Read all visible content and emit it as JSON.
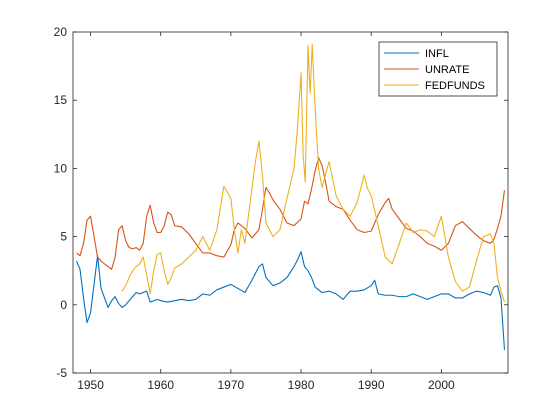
{
  "chart_data": {
    "type": "line",
    "title": "",
    "xlabel": "",
    "ylabel": "",
    "xlim": [
      1947.5,
      2009.5
    ],
    "ylim": [
      -5,
      20
    ],
    "xticks": [
      1950,
      1960,
      1970,
      1980,
      1990,
      2000
    ],
    "yticks": [
      -5,
      0,
      5,
      10,
      15,
      20
    ],
    "grid": false,
    "legend_position": "top-right",
    "series": [
      {
        "name": "INFL",
        "color": "#0072BD",
        "points": [
          [
            1948,
            3.2
          ],
          [
            1948.5,
            2.6
          ],
          [
            1949,
            0.5
          ],
          [
            1949.5,
            -1.3
          ],
          [
            1950,
            -0.6
          ],
          [
            1950.5,
            1.5
          ],
          [
            1951,
            3.6
          ],
          [
            1951.5,
            1.2
          ],
          [
            1952,
            0.5
          ],
          [
            1952.5,
            -0.2
          ],
          [
            1953,
            0.3
          ],
          [
            1953.5,
            0.6
          ],
          [
            1954,
            0.1
          ],
          [
            1954.5,
            -0.2
          ],
          [
            1955,
            0.0
          ],
          [
            1955.5,
            0.3
          ],
          [
            1956,
            0.6
          ],
          [
            1956.5,
            0.9
          ],
          [
            1957,
            0.8
          ],
          [
            1957.5,
            0.9
          ],
          [
            1958,
            1.0
          ],
          [
            1958.5,
            0.2
          ],
          [
            1959,
            0.3
          ],
          [
            1959.5,
            0.4
          ],
          [
            1960,
            0.3
          ],
          [
            1961,
            0.2
          ],
          [
            1962,
            0.3
          ],
          [
            1963,
            0.4
          ],
          [
            1964,
            0.3
          ],
          [
            1965,
            0.4
          ],
          [
            1966,
            0.8
          ],
          [
            1967,
            0.7
          ],
          [
            1968,
            1.1
          ],
          [
            1969,
            1.3
          ],
          [
            1970,
            1.5
          ],
          [
            1971,
            1.2
          ],
          [
            1972,
            0.9
          ],
          [
            1973,
            1.8
          ],
          [
            1974,
            2.8
          ],
          [
            1974.5,
            3.0
          ],
          [
            1975,
            2.0
          ],
          [
            1976,
            1.4
          ],
          [
            1977,
            1.6
          ],
          [
            1978,
            2.0
          ],
          [
            1979,
            2.8
          ],
          [
            1979.5,
            3.3
          ],
          [
            1980,
            3.9
          ],
          [
            1980.5,
            2.8
          ],
          [
            1981,
            2.5
          ],
          [
            1981.5,
            2.0
          ],
          [
            1982,
            1.3
          ],
          [
            1983,
            0.9
          ],
          [
            1984,
            1.0
          ],
          [
            1985,
            0.8
          ],
          [
            1986,
            0.4
          ],
          [
            1987,
            1.0
          ],
          [
            1988,
            1.0
          ],
          [
            1989,
            1.1
          ],
          [
            1990,
            1.4
          ],
          [
            1990.5,
            1.8
          ],
          [
            1991,
            0.8
          ],
          [
            1992,
            0.7
          ],
          [
            1993,
            0.7
          ],
          [
            1994,
            0.6
          ],
          [
            1995,
            0.6
          ],
          [
            1996,
            0.8
          ],
          [
            1997,
            0.6
          ],
          [
            1998,
            0.4
          ],
          [
            1999,
            0.6
          ],
          [
            2000,
            0.8
          ],
          [
            2001,
            0.8
          ],
          [
            2002,
            0.5
          ],
          [
            2003,
            0.5
          ],
          [
            2004,
            0.8
          ],
          [
            2005,
            1.0
          ],
          [
            2006,
            0.9
          ],
          [
            2007,
            0.7
          ],
          [
            2007.5,
            1.3
          ],
          [
            2008,
            1.4
          ],
          [
            2008.5,
            0.5
          ],
          [
            2009,
            -3.3
          ]
        ]
      },
      {
        "name": "UNRATE",
        "color": "#D95319",
        "points": [
          [
            1948,
            3.8
          ],
          [
            1948.5,
            3.6
          ],
          [
            1949,
            4.5
          ],
          [
            1949.5,
            6.2
          ],
          [
            1950,
            6.5
          ],
          [
            1950.5,
            5.0
          ],
          [
            1951,
            3.5
          ],
          [
            1951.5,
            3.2
          ],
          [
            1952,
            3.0
          ],
          [
            1952.5,
            2.8
          ],
          [
            1953,
            2.6
          ],
          [
            1953.5,
            3.5
          ],
          [
            1954,
            5.5
          ],
          [
            1954.5,
            5.8
          ],
          [
            1955,
            4.7
          ],
          [
            1955.5,
            4.2
          ],
          [
            1956,
            4.1
          ],
          [
            1956.5,
            4.2
          ],
          [
            1957,
            4.0
          ],
          [
            1957.5,
            4.5
          ],
          [
            1958,
            6.5
          ],
          [
            1958.5,
            7.3
          ],
          [
            1959,
            6.0
          ],
          [
            1959.5,
            5.3
          ],
          [
            1960,
            5.3
          ],
          [
            1960.5,
            5.8
          ],
          [
            1961,
            6.8
          ],
          [
            1961.5,
            6.6
          ],
          [
            1962,
            5.8
          ],
          [
            1963,
            5.7
          ],
          [
            1964,
            5.2
          ],
          [
            1965,
            4.5
          ],
          [
            1966,
            3.8
          ],
          [
            1967,
            3.8
          ],
          [
            1968,
            3.6
          ],
          [
            1969,
            3.5
          ],
          [
            1970,
            4.4
          ],
          [
            1970.5,
            5.5
          ],
          [
            1971,
            6.0
          ],
          [
            1972,
            5.6
          ],
          [
            1973,
            4.9
          ],
          [
            1974,
            5.5
          ],
          [
            1974.5,
            7.0
          ],
          [
            1975,
            8.6
          ],
          [
            1975.5,
            8.2
          ],
          [
            1976,
            7.7
          ],
          [
            1977,
            7.0
          ],
          [
            1978,
            6.0
          ],
          [
            1979,
            5.8
          ],
          [
            1980,
            6.3
          ],
          [
            1980.5,
            7.6
          ],
          [
            1981,
            7.4
          ],
          [
            1981.5,
            8.5
          ],
          [
            1982,
            9.8
          ],
          [
            1982.5,
            10.8
          ],
          [
            1983,
            10.2
          ],
          [
            1983.5,
            9.0
          ],
          [
            1984,
            7.6
          ],
          [
            1985,
            7.2
          ],
          [
            1986,
            7.0
          ],
          [
            1987,
            6.2
          ],
          [
            1988,
            5.5
          ],
          [
            1989,
            5.3
          ],
          [
            1990,
            5.4
          ],
          [
            1991,
            6.6
          ],
          [
            1992,
            7.5
          ],
          [
            1992.5,
            7.8
          ],
          [
            1993,
            7.0
          ],
          [
            1994,
            6.3
          ],
          [
            1995,
            5.6
          ],
          [
            1996,
            5.4
          ],
          [
            1997,
            5.0
          ],
          [
            1998,
            4.5
          ],
          [
            1999,
            4.3
          ],
          [
            2000,
            4.0
          ],
          [
            2001,
            4.5
          ],
          [
            2002,
            5.8
          ],
          [
            2003,
            6.1
          ],
          [
            2004,
            5.6
          ],
          [
            2005,
            5.1
          ],
          [
            2006,
            4.7
          ],
          [
            2007,
            4.5
          ],
          [
            2007.5,
            4.8
          ],
          [
            2008,
            5.6
          ],
          [
            2008.5,
            6.5
          ],
          [
            2009,
            8.4
          ]
        ]
      },
      {
        "name": "FEDFUNDS",
        "color": "#EDB120",
        "points": [
          [
            1954.5,
            1.0
          ],
          [
            1955,
            1.4
          ],
          [
            1955.5,
            2.0
          ],
          [
            1956,
            2.5
          ],
          [
            1956.5,
            2.8
          ],
          [
            1957,
            3.0
          ],
          [
            1957.5,
            3.5
          ],
          [
            1958,
            2.2
          ],
          [
            1958.5,
            0.8
          ],
          [
            1959,
            2.5
          ],
          [
            1959.5,
            3.7
          ],
          [
            1960,
            3.8
          ],
          [
            1960.5,
            2.5
          ],
          [
            1961,
            1.5
          ],
          [
            1961.5,
            2.0
          ],
          [
            1962,
            2.7
          ],
          [
            1963,
            3.0
          ],
          [
            1964,
            3.5
          ],
          [
            1965,
            4.0
          ],
          [
            1966,
            5.0
          ],
          [
            1967,
            4.0
          ],
          [
            1968,
            5.5
          ],
          [
            1969,
            8.7
          ],
          [
            1970,
            7.8
          ],
          [
            1970.5,
            5.5
          ],
          [
            1971,
            3.8
          ],
          [
            1971.5,
            5.5
          ],
          [
            1972,
            4.5
          ],
          [
            1973,
            8.5
          ],
          [
            1973.5,
            10.5
          ],
          [
            1974,
            12.0
          ],
          [
            1974.5,
            9.5
          ],
          [
            1975,
            6.0
          ],
          [
            1976,
            5.0
          ],
          [
            1977,
            5.5
          ],
          [
            1978,
            7.8
          ],
          [
            1979,
            10.0
          ],
          [
            1979.5,
            13.0
          ],
          [
            1980,
            17.0
          ],
          [
            1980.3,
            11.0
          ],
          [
            1980.6,
            9.0
          ],
          [
            1981,
            19.0
          ],
          [
            1981.3,
            15.5
          ],
          [
            1981.6,
            19.1
          ],
          [
            1982,
            14.5
          ],
          [
            1982.5,
            10.0
          ],
          [
            1983,
            8.6
          ],
          [
            1984,
            10.5
          ],
          [
            1985,
            8.0
          ],
          [
            1986,
            7.0
          ],
          [
            1987,
            6.5
          ],
          [
            1988,
            7.5
          ],
          [
            1989,
            9.5
          ],
          [
            1989.5,
            8.5
          ],
          [
            1990,
            8.0
          ],
          [
            1991,
            5.8
          ],
          [
            1992,
            3.5
          ],
          [
            1993,
            3.0
          ],
          [
            1994,
            4.5
          ],
          [
            1995,
            6.0
          ],
          [
            1996,
            5.3
          ],
          [
            1997,
            5.5
          ],
          [
            1998,
            5.4
          ],
          [
            1999,
            5.0
          ],
          [
            2000,
            6.5
          ],
          [
            2001,
            3.5
          ],
          [
            2002,
            1.7
          ],
          [
            2003,
            1.0
          ],
          [
            2004,
            1.3
          ],
          [
            2005,
            3.2
          ],
          [
            2006,
            5.0
          ],
          [
            2007,
            5.2
          ],
          [
            2007.5,
            4.5
          ],
          [
            2008,
            2.0
          ],
          [
            2008.5,
            1.0
          ],
          [
            2009,
            0.2
          ]
        ]
      }
    ]
  }
}
